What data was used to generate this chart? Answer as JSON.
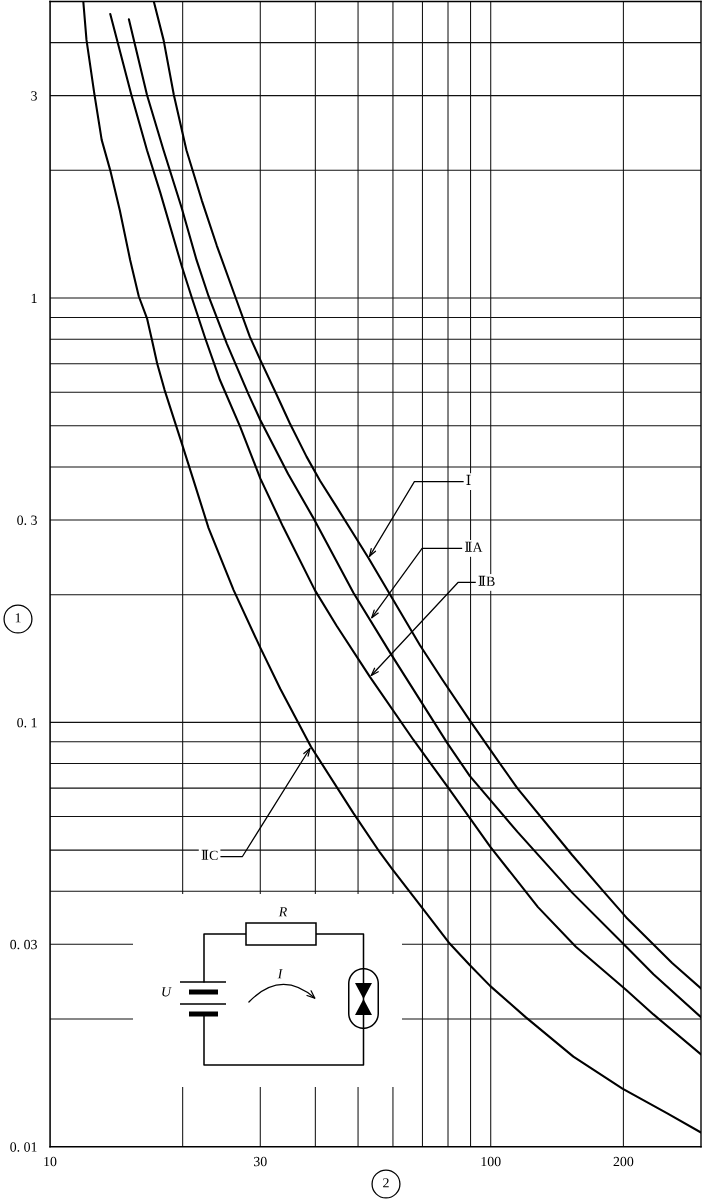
{
  "chart_data": {
    "type": "line",
    "xlabel": "2",
    "ylabel": "1",
    "log": "xy",
    "xlim": [
      10,
      300
    ],
    "ylim": [
      0.01,
      5
    ],
    "xticks": [
      10,
      {
        "value": 20,
        "label": null
      },
      30,
      {
        "value": 40,
        "label": null
      },
      {
        "value": 50,
        "label": null
      },
      {
        "value": 60,
        "label": null
      },
      {
        "value": 70,
        "label": null
      },
      {
        "value": 80,
        "label": null
      },
      {
        "value": 90,
        "label": null
      },
      100,
      200
    ],
    "yticks": [
      {
        "value": 0.01,
        "label": "0. 01"
      },
      {
        "value": 0.02,
        "label": null
      },
      {
        "value": 0.03,
        "label": "0. 03"
      },
      {
        "value": 0.04,
        "label": null
      },
      {
        "value": 0.05,
        "label": null
      },
      {
        "value": 0.06,
        "label": null
      },
      {
        "value": 0.07,
        "label": null
      },
      {
        "value": 0.08,
        "label": null
      },
      {
        "value": 0.09,
        "label": null
      },
      {
        "value": 0.1,
        "label": "0. 1"
      },
      {
        "value": 0.2,
        "label": null
      },
      {
        "value": 0.3,
        "label": "0. 3"
      },
      {
        "value": 0.4,
        "label": null
      },
      {
        "value": 0.5,
        "label": null
      },
      {
        "value": 0.6,
        "label": null
      },
      {
        "value": 0.7,
        "label": null
      },
      {
        "value": 0.8,
        "label": null
      },
      {
        "value": 0.9,
        "label": null
      },
      1,
      {
        "value": 2,
        "label": null
      },
      3,
      {
        "value": 4,
        "label": null
      }
    ],
    "grid": true,
    "series": [
      {
        "color": "#000000",
        "x": [
          17.2,
          18.1,
          19.1,
          20.4,
          22.1,
          23.9,
          26.3,
          28.4,
          30.0,
          32.7,
          35.0,
          38.2,
          41.0,
          44.7,
          52.8,
          69.1,
          77.7,
          89.7,
          99.8,
          115,
          153,
          179,
          203,
          258,
          300
        ],
        "values": [
          5.0,
          4.06,
          3.01,
          2.23,
          1.7,
          1.33,
          1.01,
          0.811,
          0.715,
          0.591,
          0.507,
          0.423,
          0.371,
          0.322,
          0.244,
          0.152,
          0.126,
          0.101,
          0.0861,
          0.0699,
          0.0487,
          0.0403,
          0.0347,
          0.0271,
          0.0236
        ]
      },
      {
        "color": "#000000",
        "x": [
          15.1,
          16.6,
          18.1,
          19.9,
          21.5,
          22.9,
          25.2,
          28.2,
          30.0,
          34.7,
          39.6,
          48.8,
          59.1,
          79.5,
          89.6,
          115,
          153,
          203,
          234,
          300
        ],
        "values": [
          4.54,
          3.01,
          2.23,
          1.63,
          1.23,
          1.01,
          0.78,
          0.594,
          0.516,
          0.385,
          0.303,
          0.202,
          0.146,
          0.0897,
          0.0748,
          0.0552,
          0.0397,
          0.0296,
          0.0255,
          0.0202
        ]
      },
      {
        "color": "#000000",
        "x": [
          13.7,
          15.3,
          16.6,
          17.8,
          19.9,
          21.0,
          22.5,
          24.3,
          27.0,
          30.0,
          33.8,
          39.9,
          44.7,
          53.2,
          66.8,
          80.3,
          99.8,
          128,
          156,
          203,
          234,
          300
        ],
        "values": [
          4.67,
          3.01,
          2.23,
          1.77,
          1.19,
          0.999,
          0.804,
          0.641,
          0.498,
          0.376,
          0.289,
          0.205,
          0.169,
          0.128,
          0.0909,
          0.0699,
          0.0509,
          0.0367,
          0.0296,
          0.0234,
          0.0205,
          0.0165
        ]
      },
      {
        "color": "#000000",
        "x": [
          11.9,
          12.1,
          12.6,
          13.1,
          13.7,
          14.4,
          15.2,
          15.9,
          16.6,
          17.0,
          17.5,
          18.2,
          19.9,
          21.1,
          22.9,
          26.1,
          30.0,
          33.3,
          39.1,
          48.8,
          56.1,
          59.9,
          69.7,
          80.3,
          89.6,
          99.8,
          120,
          154,
          199,
          251,
          300
        ],
        "values": [
          5.0,
          4.06,
          3.04,
          2.36,
          2.0,
          1.61,
          1.23,
          1.01,
          0.896,
          0.804,
          0.702,
          0.607,
          0.455,
          0.376,
          0.287,
          0.205,
          0.15,
          0.12,
          0.0876,
          0.0611,
          0.0493,
          0.045,
          0.0367,
          0.0303,
          0.0268,
          0.0239,
          0.0202,
          0.0163,
          0.0137,
          0.012,
          0.0108
        ]
      }
    ],
    "annotations": [
      {
        "text": "Ⅰ",
        "x": 52.8,
        "y": 0.244
      },
      {
        "text": "ⅡA",
        "x": 53.4,
        "y": 0.175
      },
      {
        "text": "ⅡB",
        "x": 53.2,
        "y": 0.128
      },
      {
        "text": "ⅡC",
        "x": 39.1,
        "y": 0.0876
      },
      "R",
      "U",
      "I"
    ]
  }
}
